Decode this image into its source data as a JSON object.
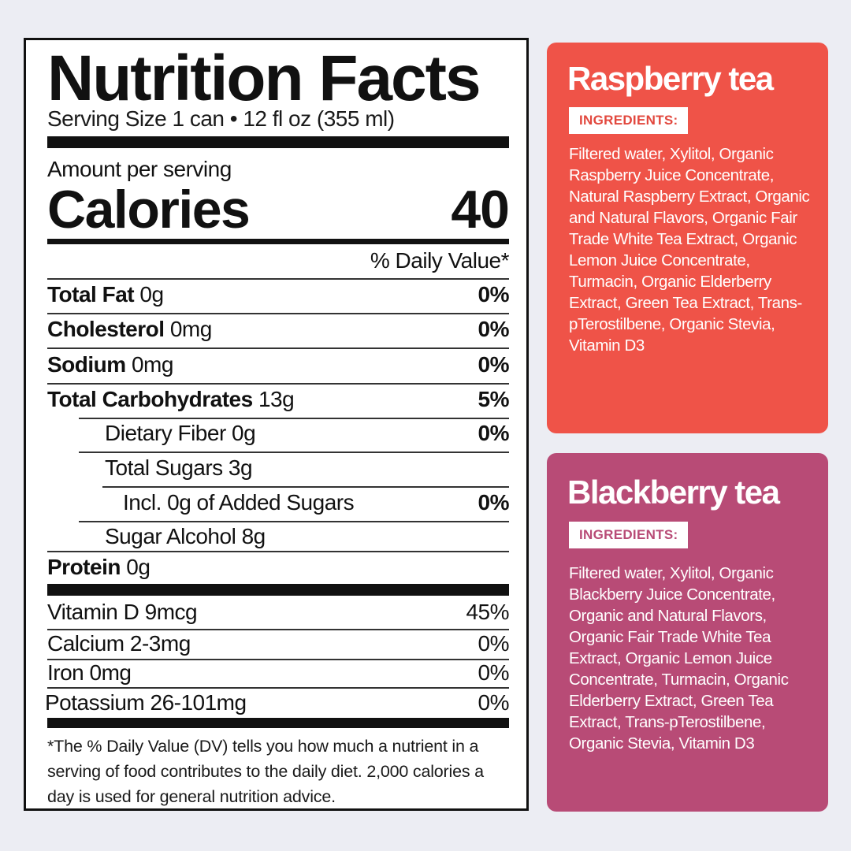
{
  "nutrition": {
    "title": "Nutrition Facts",
    "serving": "Serving Size 1 can • 12 fl oz (355 ml)",
    "amount_per_serving": "Amount per serving",
    "calories_label": "Calories",
    "calories_value": "40",
    "dv_header": "% Daily Value*",
    "rows": [
      {
        "name": "Total Fat",
        "amount": "0g",
        "dv": "0%"
      },
      {
        "name": "Cholesterol",
        "amount": "0mg",
        "dv": "0%"
      },
      {
        "name": "Sodium",
        "amount": "0mg",
        "dv": "0%"
      },
      {
        "name": "Total Carbohydrates",
        "amount": "13g",
        "dv": "5%"
      },
      {
        "name": "Dietary Fiber 0g",
        "amount": "",
        "dv": "0%"
      },
      {
        "name": "Total Sugars  3g",
        "amount": "",
        "dv": ""
      },
      {
        "name": "Incl. 0g of Added Sugars",
        "amount": "",
        "dv": "0%"
      },
      {
        "name": "Sugar Alcohol 8g",
        "amount": "",
        "dv": ""
      },
      {
        "name": "Protein",
        "amount": "0g",
        "dv": ""
      }
    ],
    "vitamins": [
      {
        "text": "Vitamin D 9mcg",
        "dv": "45%"
      },
      {
        "text": "Calcium 2-3mg",
        "dv": "0%"
      },
      {
        "text": "Iron 0mg",
        "dv": "0%"
      },
      {
        "text": "Potassium 26-101mg",
        "dv": "0%"
      }
    ],
    "footnote": "*The % Daily Value (DV) tells you how much a nutrient in a serving of food contributes to the daily diet. 2,000 calories a day is used for general nutrition advice."
  },
  "raspberry": {
    "title": "Raspberry tea",
    "badge": "INGREDIENTS:",
    "ingredients": "Filtered water, Xylitol, Organic Raspberry Juice Concentrate, Natural Raspberry Extract, Organic and Natural Flavors, Organic Fair Trade White Tea Extract, Organic Lemon Juice Concentrate, Turmacin, Organic Elderberry Extract, Green Tea Extract, Trans-pTerostilbene, Organic Stevia, Vitamin D3",
    "color": "#ef5348"
  },
  "blackberry": {
    "title": "Blackberry tea",
    "badge": "INGREDIENTS:",
    "ingredients": "Filtered water, Xylitol, Organic Blackberry Juice Concentrate, Organic and Natural Flavors, Organic Fair Trade White Tea Extract, Organic Lemon Juice Concentrate, Turmacin, Organic Elderberry Extract, Green Tea Extract, Trans-pTerostilbene, Organic Stevia, Vitamin D3",
    "color": "#b84b76"
  }
}
